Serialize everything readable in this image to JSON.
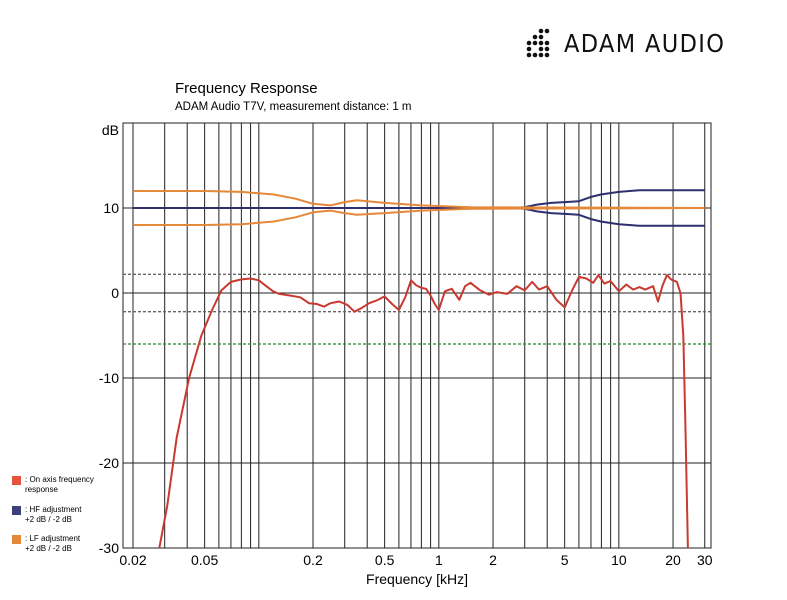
{
  "brand": {
    "name": "ADAM AUDIO"
  },
  "colors": {
    "on_axis": "#c8392f",
    "hf": "#2e2f6e",
    "lf": "#e5883a",
    "ref_dashed": "#666666",
    "green_dashed": "#1f8a2a"
  },
  "legend": [
    {
      "label_1": ": On axis frequency",
      "label_2": "response",
      "color": "#e5533d"
    },
    {
      "label_1": ": HF adjustment",
      "label_2": "+2 dB / -2 dB",
      "color": "#3b3f7a"
    },
    {
      "label_1": ": LF adjustment",
      "label_2": "+2 dB / -2 dB",
      "color": "#e5883a"
    }
  ],
  "chart_data": {
    "type": "line",
    "title": "Frequency Response",
    "subtitle": "ADAM Audio T7V, measurement distance: 1 m",
    "xlabel": "Frequency [kHz]",
    "ylabel": "dB",
    "x_scale": "log",
    "xlim": [
      0.02,
      30
    ],
    "ylim": [
      -30,
      20
    ],
    "x_ticks": [
      {
        "v": 0.02,
        "label": "0.02"
      },
      {
        "v": 0.05,
        "label": "0.05"
      },
      {
        "v": 0.2,
        "label": "0.2"
      },
      {
        "v": 0.5,
        "label": "0.5"
      },
      {
        "v": 1,
        "label": "1"
      },
      {
        "v": 2,
        "label": "2"
      },
      {
        "v": 5,
        "label": "5"
      },
      {
        "v": 10,
        "label": "10"
      },
      {
        "v": 20,
        "label": "20"
      },
      {
        "v": 30,
        "label": "30"
      }
    ],
    "y_ticks": [
      {
        "v": 10,
        "label": "10"
      },
      {
        "v": 0,
        "label": "0"
      },
      {
        "v": -10,
        "label": "-10"
      },
      {
        "v": -20,
        "label": "-20"
      },
      {
        "v": -30,
        "label": "-30"
      }
    ],
    "reference_lines": [
      {
        "y": 2.2,
        "style": "dashed",
        "color": "#666666"
      },
      {
        "y": -2.2,
        "style": "dashed",
        "color": "#666666"
      },
      {
        "y": -6,
        "style": "dashed",
        "color": "#1f8a2a"
      }
    ],
    "grid": true,
    "legend_position": "bottom-left outside",
    "series": [
      {
        "name": "On axis frequency response",
        "color": "#c8392f",
        "points": [
          [
            0.028,
            -30
          ],
          [
            0.031,
            -25
          ],
          [
            0.035,
            -17
          ],
          [
            0.041,
            -10
          ],
          [
            0.048,
            -5
          ],
          [
            0.055,
            -2
          ],
          [
            0.062,
            0.3
          ],
          [
            0.07,
            1.3
          ],
          [
            0.08,
            1.6
          ],
          [
            0.09,
            1.7
          ],
          [
            0.1,
            1.5
          ],
          [
            0.11,
            0.8
          ],
          [
            0.12,
            0.2
          ],
          [
            0.13,
            -0.1
          ],
          [
            0.15,
            -0.3
          ],
          [
            0.17,
            -0.5
          ],
          [
            0.19,
            -1.2
          ],
          [
            0.21,
            -1.3
          ],
          [
            0.23,
            -1.6
          ],
          [
            0.25,
            -1.2
          ],
          [
            0.28,
            -1.0
          ],
          [
            0.31,
            -1.4
          ],
          [
            0.34,
            -2.2
          ],
          [
            0.37,
            -1.8
          ],
          [
            0.41,
            -1.2
          ],
          [
            0.45,
            -0.9
          ],
          [
            0.5,
            -0.4
          ],
          [
            0.55,
            -1.3
          ],
          [
            0.6,
            -2.0
          ],
          [
            0.65,
            -0.5
          ],
          [
            0.7,
            1.5
          ],
          [
            0.75,
            0.9
          ],
          [
            0.8,
            0.6
          ],
          [
            0.85,
            0.5
          ],
          [
            0.9,
            -0.3
          ],
          [
            0.95,
            -1.3
          ],
          [
            1.0,
            -2.0
          ],
          [
            1.08,
            0.2
          ],
          [
            1.18,
            0.5
          ],
          [
            1.3,
            -0.8
          ],
          [
            1.4,
            0.8
          ],
          [
            1.5,
            1.2
          ],
          [
            1.7,
            0.3
          ],
          [
            1.9,
            -0.2
          ],
          [
            2.1,
            0.1
          ],
          [
            2.4,
            -0.1
          ],
          [
            2.7,
            0.8
          ],
          [
            3.0,
            0.3
          ],
          [
            3.3,
            1.3
          ],
          [
            3.6,
            0.4
          ],
          [
            4.0,
            0.8
          ],
          [
            4.5,
            -0.8
          ],
          [
            5.0,
            -1.7
          ],
          [
            5.5,
            0.3
          ],
          [
            6.0,
            1.9
          ],
          [
            6.6,
            1.7
          ],
          [
            7.2,
            1.2
          ],
          [
            7.7,
            2.1
          ],
          [
            8.3,
            1.1
          ],
          [
            9.0,
            1.4
          ],
          [
            10,
            0.2
          ],
          [
            11,
            1.0
          ],
          [
            12,
            0.4
          ],
          [
            13,
            0.7
          ],
          [
            14,
            0.4
          ],
          [
            15.5,
            0.8
          ],
          [
            16.5,
            -1.0
          ],
          [
            17.5,
            0.9
          ],
          [
            18.5,
            2.1
          ],
          [
            19.5,
            1.6
          ],
          [
            21,
            1.3
          ],
          [
            22,
            0
          ],
          [
            22.8,
            -5
          ],
          [
            23.4,
            -15
          ],
          [
            24.2,
            -30
          ]
        ]
      },
      {
        "name": "HF adjustment +2 dB",
        "color": "#2e2f6e",
        "points": [
          [
            0.02,
            10
          ],
          [
            2.5,
            10
          ],
          [
            3,
            10.1
          ],
          [
            3.5,
            10.4
          ],
          [
            4.2,
            10.6
          ],
          [
            5,
            10.7
          ],
          [
            6,
            10.8
          ],
          [
            7,
            11.3
          ],
          [
            8,
            11.6
          ],
          [
            10,
            11.9
          ],
          [
            13,
            12.1
          ],
          [
            30,
            12.1
          ]
        ]
      },
      {
        "name": "HF adjustment -2 dB",
        "color": "#2e2f6e",
        "points": [
          [
            0.02,
            10
          ],
          [
            2.5,
            10
          ],
          [
            3,
            9.9
          ],
          [
            3.5,
            9.6
          ],
          [
            4.2,
            9.4
          ],
          [
            5,
            9.3
          ],
          [
            6,
            9.2
          ],
          [
            7,
            8.7
          ],
          [
            8,
            8.4
          ],
          [
            10,
            8.1
          ],
          [
            13,
            7.9
          ],
          [
            30,
            7.9
          ]
        ]
      },
      {
        "name": "LF adjustment +2 dB",
        "color": "#e5883a",
        "points": [
          [
            0.02,
            12
          ],
          [
            0.05,
            12
          ],
          [
            0.08,
            11.9
          ],
          [
            0.12,
            11.6
          ],
          [
            0.16,
            11.1
          ],
          [
            0.2,
            10.5
          ],
          [
            0.25,
            10.3
          ],
          [
            0.3,
            10.7
          ],
          [
            0.35,
            10.9
          ],
          [
            0.5,
            10.6
          ],
          [
            0.8,
            10.3
          ],
          [
            1.5,
            10.1
          ],
          [
            30,
            10
          ]
        ]
      },
      {
        "name": "LF adjustment -2 dB",
        "color": "#e5883a",
        "points": [
          [
            0.02,
            8
          ],
          [
            0.05,
            8
          ],
          [
            0.08,
            8.1
          ],
          [
            0.12,
            8.4
          ],
          [
            0.16,
            8.9
          ],
          [
            0.2,
            9.5
          ],
          [
            0.25,
            9.7
          ],
          [
            0.3,
            9.4
          ],
          [
            0.35,
            9.2
          ],
          [
            0.5,
            9.4
          ],
          [
            0.8,
            9.7
          ],
          [
            1.5,
            9.9
          ],
          [
            30,
            10
          ]
        ]
      }
    ]
  }
}
